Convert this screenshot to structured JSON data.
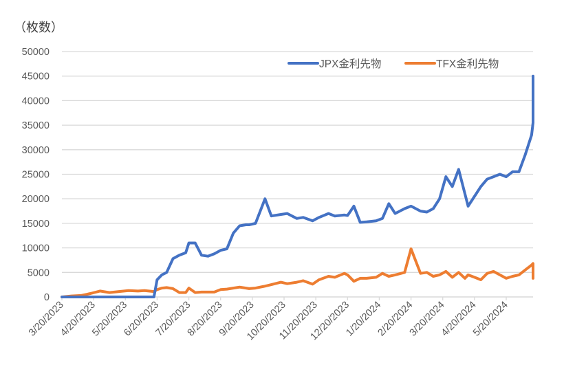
{
  "chart_data": {
    "type": "line",
    "title": "",
    "unit_label": "（枚数）",
    "xlabel": "",
    "ylabel": "（枚数）",
    "ylim": [
      0,
      50000
    ],
    "yticks": [
      0,
      5000,
      10000,
      15000,
      20000,
      25000,
      30000,
      35000,
      40000,
      45000,
      50000
    ],
    "xtick_labels": [
      "3/20/2023",
      "4/20/2023",
      "5/20/2023",
      "6/20/2023",
      "7/20/2023",
      "8/20/2023",
      "9/20/2023",
      "10/20/2023",
      "11/20/2023",
      "12/20/2023",
      "1/20/2024",
      "2/20/2024",
      "3/20/2024",
      "4/20/2024",
      "5/20/2024"
    ],
    "grid": true,
    "legend_position": "top-right",
    "colors": {
      "JPX": "#4472C4",
      "TFX": "#ED7D31",
      "grid": "#D9D9D9"
    },
    "x_months_from_start": [
      0,
      0.3,
      0.6,
      0.9,
      1.2,
      1.5,
      1.8,
      2.1,
      2.4,
      2.6,
      2.9,
      3.0,
      3.15,
      3.3,
      3.5,
      3.7,
      3.9,
      4.0,
      4.2,
      4.4,
      4.6,
      4.8,
      5.0,
      5.2,
      5.4,
      5.6,
      5.8,
      5.9,
      6.1,
      6.4,
      6.6,
      6.9,
      7.1,
      7.4,
      7.6,
      7.9,
      8.1,
      8.4,
      8.6,
      8.9,
      9.0,
      9.2,
      9.4,
      9.6,
      9.9,
      10.1,
      10.3,
      10.5,
      10.8,
      11.0,
      11.3,
      11.5,
      11.7,
      11.9,
      12.1,
      12.3,
      12.5,
      12.7,
      12.8,
      13.0,
      13.2,
      13.4,
      13.6,
      13.8,
      14.0,
      14.2,
      14.4,
      14.6,
      14.8,
      15.0,
      15.2,
      15.4,
      15.6,
      15.8
    ],
    "series": [
      {
        "name": "JPX金利先物",
        "color": "#4472C4",
        "values": [
          0,
          0,
          0,
          0,
          0,
          0,
          0,
          0,
          0,
          0,
          0,
          3500,
          4500,
          5000,
          7800,
          8500,
          9000,
          11000,
          11000,
          8500,
          8300,
          8800,
          9500,
          9800,
          13000,
          14500,
          14700,
          14700,
          15000,
          20000,
          16500,
          16800,
          17000,
          16000,
          16200,
          15500,
          16200,
          17000,
          16500,
          16700,
          16600,
          18500,
          15200,
          15300,
          15500,
          16000,
          19000,
          17000,
          18000,
          18500,
          17500,
          17300,
          18000,
          20000,
          24500,
          22500,
          26000,
          21000,
          18500,
          20500,
          22500,
          24000,
          24500,
          25000,
          24500,
          25500,
          25500,
          29000,
          33000,
          35500,
          36000,
          38500,
          39000,
          45000
        ]
      },
      {
        "name": "TFX金利先物",
        "color": "#ED7D31",
        "values": [
          0,
          200,
          300,
          700,
          1200,
          900,
          1100,
          1300,
          1200,
          1300,
          1100,
          1500,
          1800,
          1900,
          1700,
          900,
          900,
          1800,
          900,
          1000,
          1000,
          1000,
          1500,
          1600,
          1800,
          2000,
          1800,
          1700,
          1800,
          2200,
          2500,
          3000,
          2700,
          3000,
          3300,
          2600,
          3500,
          4200,
          4000,
          4800,
          4500,
          3200,
          3800,
          3800,
          4000,
          4800,
          4200,
          4500,
          5000,
          9800,
          4800,
          5000,
          4200,
          4500,
          5200,
          4000,
          5000,
          3800,
          4500,
          4000,
          3500,
          4800,
          5200,
          4500,
          3800,
          4200,
          4500,
          5500,
          6500,
          6800,
          5800,
          6000,
          4500,
          3800
        ]
      }
    ]
  },
  "legend": {
    "items": [
      {
        "label": "JPX金利先物",
        "color": "#4472C4"
      },
      {
        "label": "TFX金利先物",
        "color": "#ED7D31"
      }
    ]
  }
}
